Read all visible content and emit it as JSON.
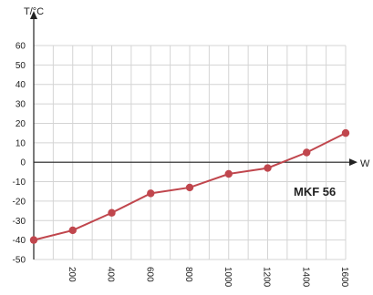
{
  "chart_data": {
    "type": "line",
    "xlabel": "W",
    "ylabel": "T/°C",
    "xlim": [
      0,
      1600
    ],
    "ylim": [
      -50,
      60
    ],
    "x_ticks": [
      "200",
      "400",
      "600",
      "800",
      "1000",
      "1200",
      "1400",
      "1600"
    ],
    "y_ticks": [
      "60",
      "50",
      "40",
      "30",
      "20",
      "10",
      "0",
      "-10",
      "-20",
      "-30",
      "-40",
      "-50"
    ],
    "grid": true,
    "series": [
      {
        "name": "MKF 56",
        "x": [
          0,
          200,
          400,
          600,
          800,
          1000,
          1200,
          1400,
          1600
        ],
        "y": [
          -40,
          -35,
          -26,
          -16,
          -13,
          -6,
          -3,
          5,
          15
        ]
      }
    ],
    "colors": {
      "series": "#c0464d",
      "grid": "#d4d4d4",
      "axis": "#222222"
    }
  }
}
